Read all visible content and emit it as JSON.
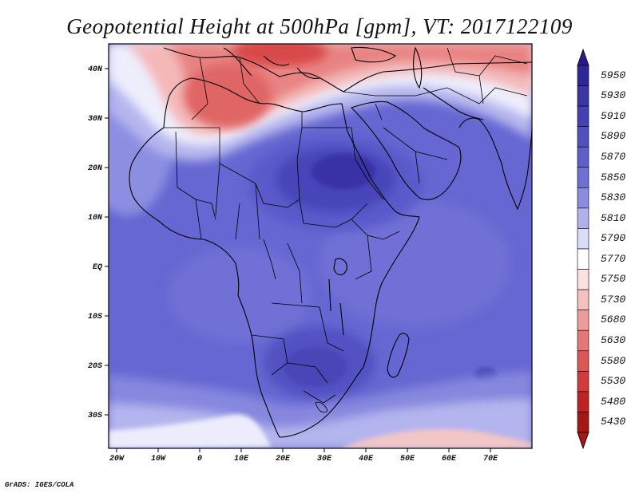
{
  "title": "Geopotential Height at 500hPa [gpm], VT: 2017122109",
  "credit": "GrADS: IGES/COLA",
  "axes": {
    "x_ticks": [
      "20W",
      "10W",
      "0",
      "10E",
      "20E",
      "30E",
      "40E",
      "50E",
      "60E",
      "70E"
    ],
    "y_ticks": [
      "40N",
      "30N",
      "20N",
      "10N",
      "EQ",
      "10S",
      "20S",
      "30S"
    ]
  },
  "colorbar": {
    "levels": [
      "5950",
      "5930",
      "5910",
      "5890",
      "5870",
      "5850",
      "5830",
      "5810",
      "5790",
      "5770",
      "5750",
      "5730",
      "5680",
      "5630",
      "5580",
      "5530",
      "5480",
      "5430"
    ],
    "top_color": "#2a1a8f",
    "bottom_color": "#a61616",
    "colors": [
      "#2f2596",
      "#3b35a6",
      "#4640b4",
      "#5150c0",
      "#5e5fcb",
      "#6f70d4",
      "#8b8ce0",
      "#b0b1ec",
      "#dcdcf8",
      "#ffffff",
      "#fbe1e1",
      "#f5c0c0",
      "#ef9b9b",
      "#e77777",
      "#de5757",
      "#d23b3b",
      "#bf2424",
      "#a61616"
    ]
  },
  "map_colors": {
    "background": "#6466d0",
    "land_lines": "#000000"
  }
}
